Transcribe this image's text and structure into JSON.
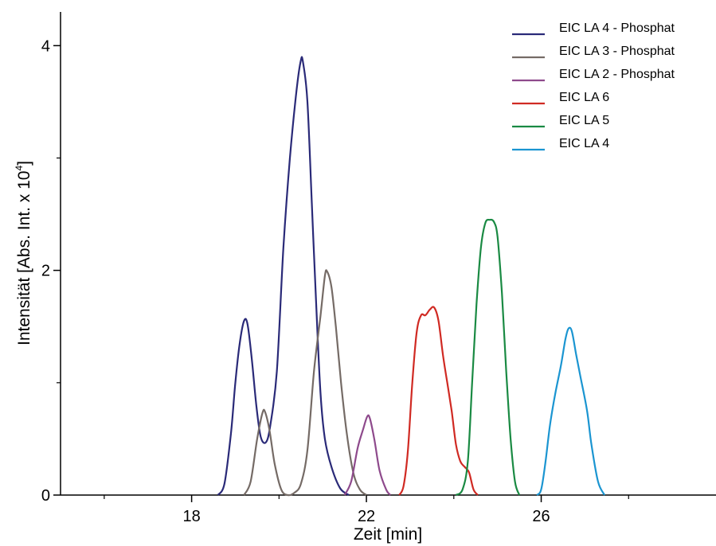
{
  "chart_data": {
    "type": "line",
    "title": "",
    "xlabel": "Zeit [min]",
    "ylabel_main": "Intensität [Abs. Int. x 10",
    "ylabel_exp": "4",
    "ylabel_close": "]",
    "xlim": [
      15.0,
      30.0
    ],
    "ylim": [
      0,
      4.3
    ],
    "xticks": [
      {
        "value": 18,
        "label": "18"
      },
      {
        "value": 22,
        "label": "22"
      },
      {
        "value": 26,
        "label": "26"
      }
    ],
    "xminor": [
      16,
      20,
      24,
      28
    ],
    "yticks": [
      {
        "value": 0,
        "label": "0"
      },
      {
        "value": 2,
        "label": "2"
      },
      {
        "value": 4,
        "label": "4"
      }
    ],
    "yminor": [
      1,
      3
    ],
    "grid": false,
    "legend_position": "top-right",
    "series": [
      {
        "name": "EIC LA 4 - Phosphat",
        "color": "#2a2a78",
        "points": [
          [
            18.6,
            0
          ],
          [
            18.75,
            0.1
          ],
          [
            18.9,
            0.55
          ],
          [
            19.0,
            1.0
          ],
          [
            19.1,
            1.35
          ],
          [
            19.2,
            1.55
          ],
          [
            19.28,
            1.52
          ],
          [
            19.38,
            1.2
          ],
          [
            19.48,
            0.8
          ],
          [
            19.58,
            0.52
          ],
          [
            19.7,
            0.47
          ],
          [
            19.8,
            0.62
          ],
          [
            19.95,
            1.1
          ],
          [
            20.1,
            2.2
          ],
          [
            20.25,
            3.0
          ],
          [
            20.4,
            3.6
          ],
          [
            20.5,
            3.87
          ],
          [
            20.55,
            3.85
          ],
          [
            20.65,
            3.5
          ],
          [
            20.75,
            2.6
          ],
          [
            20.85,
            1.7
          ],
          [
            20.95,
            0.9
          ],
          [
            21.05,
            0.5
          ],
          [
            21.2,
            0.25
          ],
          [
            21.4,
            0.06
          ],
          [
            21.6,
            0
          ]
        ]
      },
      {
        "name": "EIC LA 3 - Phosphat",
        "color": "#756b66",
        "points": [
          [
            19.2,
            0
          ],
          [
            19.35,
            0.12
          ],
          [
            19.5,
            0.5
          ],
          [
            19.62,
            0.73
          ],
          [
            19.68,
            0.74
          ],
          [
            19.78,
            0.58
          ],
          [
            19.9,
            0.28
          ],
          [
            20.05,
            0.05
          ],
          [
            20.2,
            0
          ],
          [
            20.35,
            0.02
          ],
          [
            20.5,
            0.1
          ],
          [
            20.65,
            0.4
          ],
          [
            20.8,
            1.1
          ],
          [
            20.95,
            1.6
          ],
          [
            21.05,
            1.95
          ],
          [
            21.1,
            1.99
          ],
          [
            21.2,
            1.85
          ],
          [
            21.3,
            1.5
          ],
          [
            21.42,
            1.0
          ],
          [
            21.55,
            0.55
          ],
          [
            21.7,
            0.2
          ],
          [
            21.85,
            0.05
          ],
          [
            22.0,
            0
          ]
        ]
      },
      {
        "name": "EIC LA 2 - Phosphat",
        "color": "#8e4a8c",
        "points": [
          [
            21.5,
            0
          ],
          [
            21.65,
            0.12
          ],
          [
            21.8,
            0.42
          ],
          [
            21.92,
            0.58
          ],
          [
            22.02,
            0.7
          ],
          [
            22.08,
            0.68
          ],
          [
            22.18,
            0.5
          ],
          [
            22.3,
            0.22
          ],
          [
            22.45,
            0.05
          ],
          [
            22.55,
            0
          ]
        ]
      },
      {
        "name": "EIC LA 6",
        "color": "#d02a23",
        "points": [
          [
            22.75,
            0
          ],
          [
            22.85,
            0.08
          ],
          [
            22.95,
            0.4
          ],
          [
            23.05,
            1.0
          ],
          [
            23.15,
            1.45
          ],
          [
            23.25,
            1.6
          ],
          [
            23.35,
            1.6
          ],
          [
            23.45,
            1.65
          ],
          [
            23.55,
            1.67
          ],
          [
            23.65,
            1.55
          ],
          [
            23.75,
            1.25
          ],
          [
            23.85,
            1.0
          ],
          [
            23.95,
            0.75
          ],
          [
            24.05,
            0.45
          ],
          [
            24.15,
            0.3
          ],
          [
            24.25,
            0.25
          ],
          [
            24.35,
            0.2
          ],
          [
            24.45,
            0.05
          ],
          [
            24.55,
            0
          ]
        ]
      },
      {
        "name": "EIC LA 5",
        "color": "#1a8a43",
        "points": [
          [
            24.05,
            0
          ],
          [
            24.2,
            0.05
          ],
          [
            24.32,
            0.3
          ],
          [
            24.42,
            1.0
          ],
          [
            24.52,
            1.7
          ],
          [
            24.62,
            2.2
          ],
          [
            24.72,
            2.42
          ],
          [
            24.82,
            2.45
          ],
          [
            24.92,
            2.43
          ],
          [
            25.0,
            2.3
          ],
          [
            25.1,
            1.8
          ],
          [
            25.2,
            1.1
          ],
          [
            25.3,
            0.5
          ],
          [
            25.4,
            0.12
          ],
          [
            25.5,
            0
          ]
        ]
      },
      {
        "name": "EIC LA 4",
        "color": "#1b95d1",
        "points": [
          [
            25.9,
            0
          ],
          [
            26.0,
            0.05
          ],
          [
            26.1,
            0.3
          ],
          [
            26.2,
            0.62
          ],
          [
            26.32,
            0.9
          ],
          [
            26.45,
            1.15
          ],
          [
            26.55,
            1.38
          ],
          [
            26.62,
            1.48
          ],
          [
            26.7,
            1.46
          ],
          [
            26.8,
            1.25
          ],
          [
            26.9,
            1.05
          ],
          [
            27.05,
            0.75
          ],
          [
            27.15,
            0.45
          ],
          [
            27.3,
            0.12
          ],
          [
            27.45,
            0
          ]
        ]
      }
    ]
  }
}
